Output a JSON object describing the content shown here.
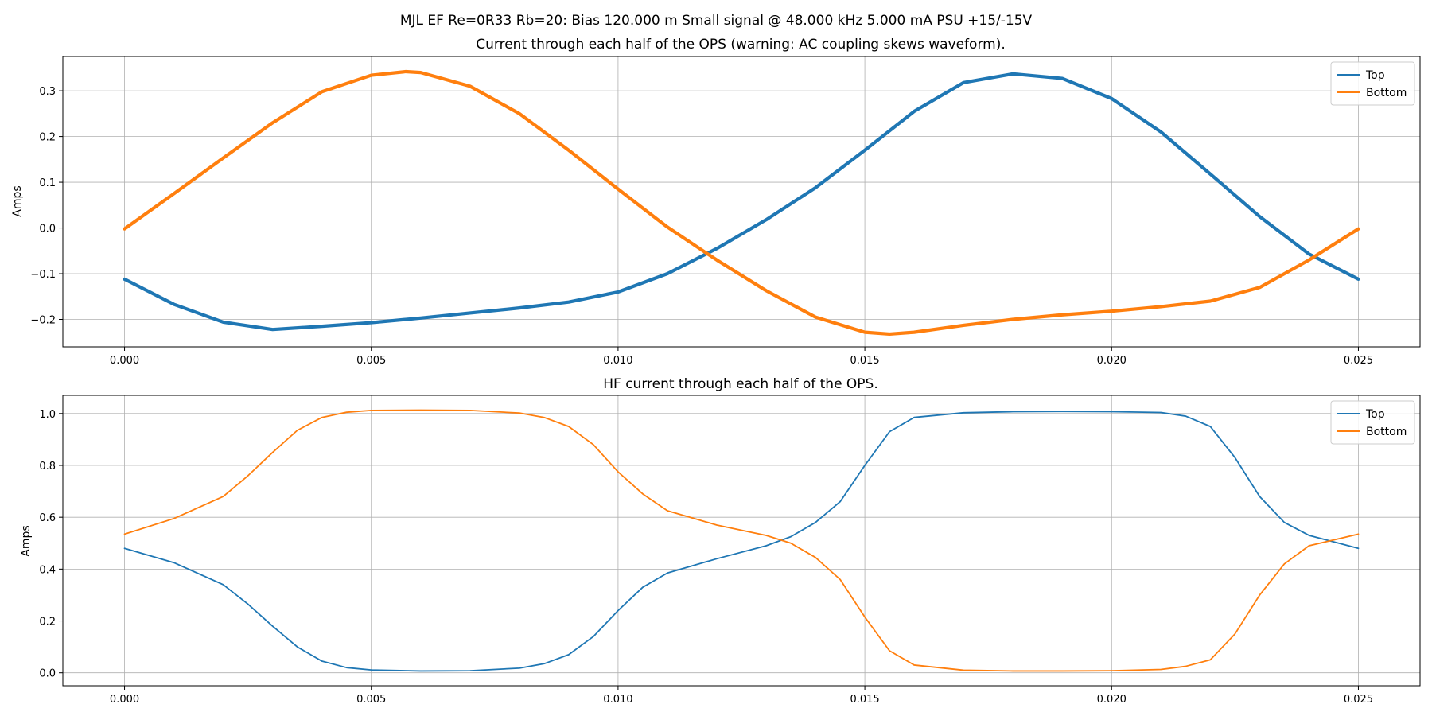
{
  "suptitle": "MJL EF Re=0R33 Rb=20: Bias 120.000 m Small signal @ 48.000 kHz 5.000 mA PSU +15/-15V",
  "chart_data": [
    {
      "type": "line",
      "title": "Current through each half of the OPS (warning: AC coupling skews waveform).",
      "xlabel": "",
      "ylabel": "Amps",
      "xlim": [
        -0.00125,
        0.02625
      ],
      "ylim": [
        -0.26,
        0.375
      ],
      "xticks": [
        0.0,
        0.005,
        0.01,
        0.015,
        0.02,
        0.025
      ],
      "xtick_labels": [
        "0.000",
        "0.005",
        "0.010",
        "0.015",
        "0.020",
        "0.025"
      ],
      "yticks": [
        -0.2,
        -0.1,
        0.0,
        0.1,
        0.2,
        0.3
      ],
      "ytick_labels": [
        "−0.2",
        "−0.1",
        "0.0",
        "0.1",
        "0.2",
        "0.3"
      ],
      "grid": true,
      "legend_position": "top-right",
      "series": [
        {
          "name": "Top",
          "color": "#1f77b4",
          "stroke": "thick",
          "x": [
            0.0,
            0.001,
            0.002,
            0.003,
            0.004,
            0.005,
            0.006,
            0.007,
            0.008,
            0.009,
            0.01,
            0.011,
            0.012,
            0.013,
            0.014,
            0.015,
            0.016,
            0.017,
            0.018,
            0.019,
            0.02,
            0.021,
            0.022,
            0.023,
            0.024,
            0.025
          ],
          "y": [
            -0.112,
            -0.167,
            -0.206,
            -0.222,
            -0.215,
            -0.207,
            -0.197,
            -0.186,
            -0.175,
            -0.162,
            -0.14,
            -0.1,
            -0.045,
            0.018,
            0.088,
            0.17,
            0.255,
            0.318,
            0.337,
            0.327,
            0.283,
            0.21,
            0.118,
            0.025,
            -0.057,
            -0.112
          ]
        },
        {
          "name": "Bottom",
          "color": "#ff7f0e",
          "stroke": "thick",
          "x": [
            0.0,
            0.001,
            0.002,
            0.003,
            0.004,
            0.005,
            0.0057,
            0.006,
            0.007,
            0.008,
            0.009,
            0.01,
            0.011,
            0.012,
            0.013,
            0.014,
            0.015,
            0.0155,
            0.016,
            0.017,
            0.018,
            0.019,
            0.02,
            0.021,
            0.022,
            0.023,
            0.024,
            0.025
          ],
          "y": [
            -0.002,
            0.075,
            0.153,
            0.23,
            0.298,
            0.334,
            0.342,
            0.34,
            0.31,
            0.25,
            0.17,
            0.085,
            0.002,
            -0.07,
            -0.137,
            -0.195,
            -0.228,
            -0.232,
            -0.228,
            -0.213,
            -0.2,
            -0.19,
            -0.182,
            -0.172,
            -0.16,
            -0.13,
            -0.07,
            -0.002
          ]
        }
      ]
    },
    {
      "type": "line",
      "title": "HF current through each half of the OPS.",
      "xlabel": "",
      "ylabel": "Amps",
      "xlim": [
        -0.00125,
        0.02625
      ],
      "ylim": [
        -0.05,
        1.07
      ],
      "xticks": [
        0.0,
        0.005,
        0.01,
        0.015,
        0.02,
        0.025
      ],
      "xtick_labels": [
        "0.000",
        "0.005",
        "0.010",
        "0.015",
        "0.020",
        "0.025"
      ],
      "yticks": [
        0.0,
        0.2,
        0.4,
        0.6,
        0.8,
        1.0
      ],
      "ytick_labels": [
        "0.0",
        "0.2",
        "0.4",
        "0.6",
        "0.8",
        "1.0"
      ],
      "grid": true,
      "legend_position": "top-right",
      "series": [
        {
          "name": "Top",
          "color": "#1f77b4",
          "stroke": "thin",
          "x": [
            0.0,
            0.001,
            0.002,
            0.0025,
            0.003,
            0.0035,
            0.004,
            0.0045,
            0.005,
            0.006,
            0.007,
            0.008,
            0.0085,
            0.009,
            0.0095,
            0.01,
            0.0105,
            0.011,
            0.012,
            0.013,
            0.0135,
            0.014,
            0.0145,
            0.015,
            0.0155,
            0.016,
            0.017,
            0.018,
            0.019,
            0.02,
            0.021,
            0.0215,
            0.022,
            0.0225,
            0.023,
            0.0235,
            0.024,
            0.025
          ],
          "y": [
            0.48,
            0.425,
            0.34,
            0.265,
            0.18,
            0.1,
            0.045,
            0.02,
            0.011,
            0.007,
            0.008,
            0.018,
            0.035,
            0.07,
            0.14,
            0.24,
            0.33,
            0.385,
            0.44,
            0.49,
            0.525,
            0.58,
            0.66,
            0.8,
            0.93,
            0.985,
            1.003,
            1.007,
            1.008,
            1.007,
            1.004,
            0.99,
            0.95,
            0.83,
            0.68,
            0.58,
            0.53,
            0.48
          ]
        },
        {
          "name": "Bottom",
          "color": "#ff7f0e",
          "stroke": "thin",
          "x": [
            0.0,
            0.001,
            0.002,
            0.0025,
            0.003,
            0.0035,
            0.004,
            0.0045,
            0.005,
            0.006,
            0.007,
            0.008,
            0.0085,
            0.009,
            0.0095,
            0.01,
            0.0105,
            0.011,
            0.012,
            0.013,
            0.0135,
            0.014,
            0.0145,
            0.015,
            0.0155,
            0.016,
            0.017,
            0.018,
            0.019,
            0.02,
            0.021,
            0.0215,
            0.022,
            0.0225,
            0.023,
            0.0235,
            0.024,
            0.025
          ],
          "y": [
            0.535,
            0.595,
            0.68,
            0.76,
            0.85,
            0.935,
            0.985,
            1.005,
            1.012,
            1.013,
            1.012,
            1.002,
            0.985,
            0.95,
            0.88,
            0.775,
            0.69,
            0.625,
            0.57,
            0.53,
            0.5,
            0.445,
            0.36,
            0.215,
            0.085,
            0.03,
            0.01,
            0.007,
            0.007,
            0.008,
            0.013,
            0.025,
            0.05,
            0.15,
            0.3,
            0.42,
            0.49,
            0.535
          ]
        }
      ]
    }
  ]
}
